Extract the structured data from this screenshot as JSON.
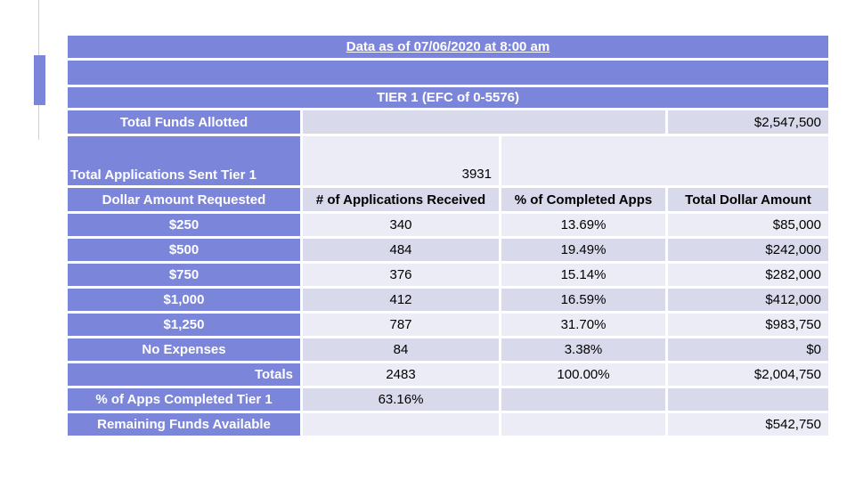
{
  "colors": {
    "header_purple": "#7b85da",
    "row_dark": "#d9d9ec",
    "row_light": "#ececf6",
    "header_text": "#ffffff",
    "data_text": "#000000",
    "accent_line": "#cdd1de"
  },
  "chart_data": {
    "type": "table",
    "title": "Data as of 07/06/2020 at 8:00 am",
    "section_header": "TIER 1 (EFC of 0-5576)",
    "total_funds_allotted": {
      "label": "Total Funds Allotted",
      "value": "$2,547,500"
    },
    "total_applications_sent": {
      "label": "Total Applications Sent Tier 1",
      "value": 3931
    },
    "columns": [
      "Dollar Amount Requested",
      "# of Applications Received",
      "% of Completed Apps",
      "Total Dollar Amount"
    ],
    "rows": [
      {
        "dollar_amount_requested": "$250",
        "applications_received": 340,
        "pct_of_completed_apps": "13.69%",
        "total_dollar_amount": "$85,000"
      },
      {
        "dollar_amount_requested": "$500",
        "applications_received": 484,
        "pct_of_completed_apps": "19.49%",
        "total_dollar_amount": "$242,000"
      },
      {
        "dollar_amount_requested": "$750",
        "applications_received": 376,
        "pct_of_completed_apps": "15.14%",
        "total_dollar_amount": "$282,000"
      },
      {
        "dollar_amount_requested": "$1,000",
        "applications_received": 412,
        "pct_of_completed_apps": "16.59%",
        "total_dollar_amount": "$412,000"
      },
      {
        "dollar_amount_requested": "$1,250",
        "applications_received": 787,
        "pct_of_completed_apps": "31.70%",
        "total_dollar_amount": "$983,750"
      },
      {
        "dollar_amount_requested": "No Expenses",
        "applications_received": 84,
        "pct_of_completed_apps": "3.38%",
        "total_dollar_amount": "$0"
      }
    ],
    "totals_row": {
      "label": "Totals",
      "applications_received": 2483,
      "pct_of_completed_apps": "100.00%",
      "total_dollar_amount": "$2,004,750"
    },
    "pct_apps_completed": {
      "label": "% of Apps Completed Tier 1",
      "value": "63.16%"
    },
    "remaining_funds": {
      "label": "Remaining Funds Available",
      "value": "$542,750"
    }
  }
}
